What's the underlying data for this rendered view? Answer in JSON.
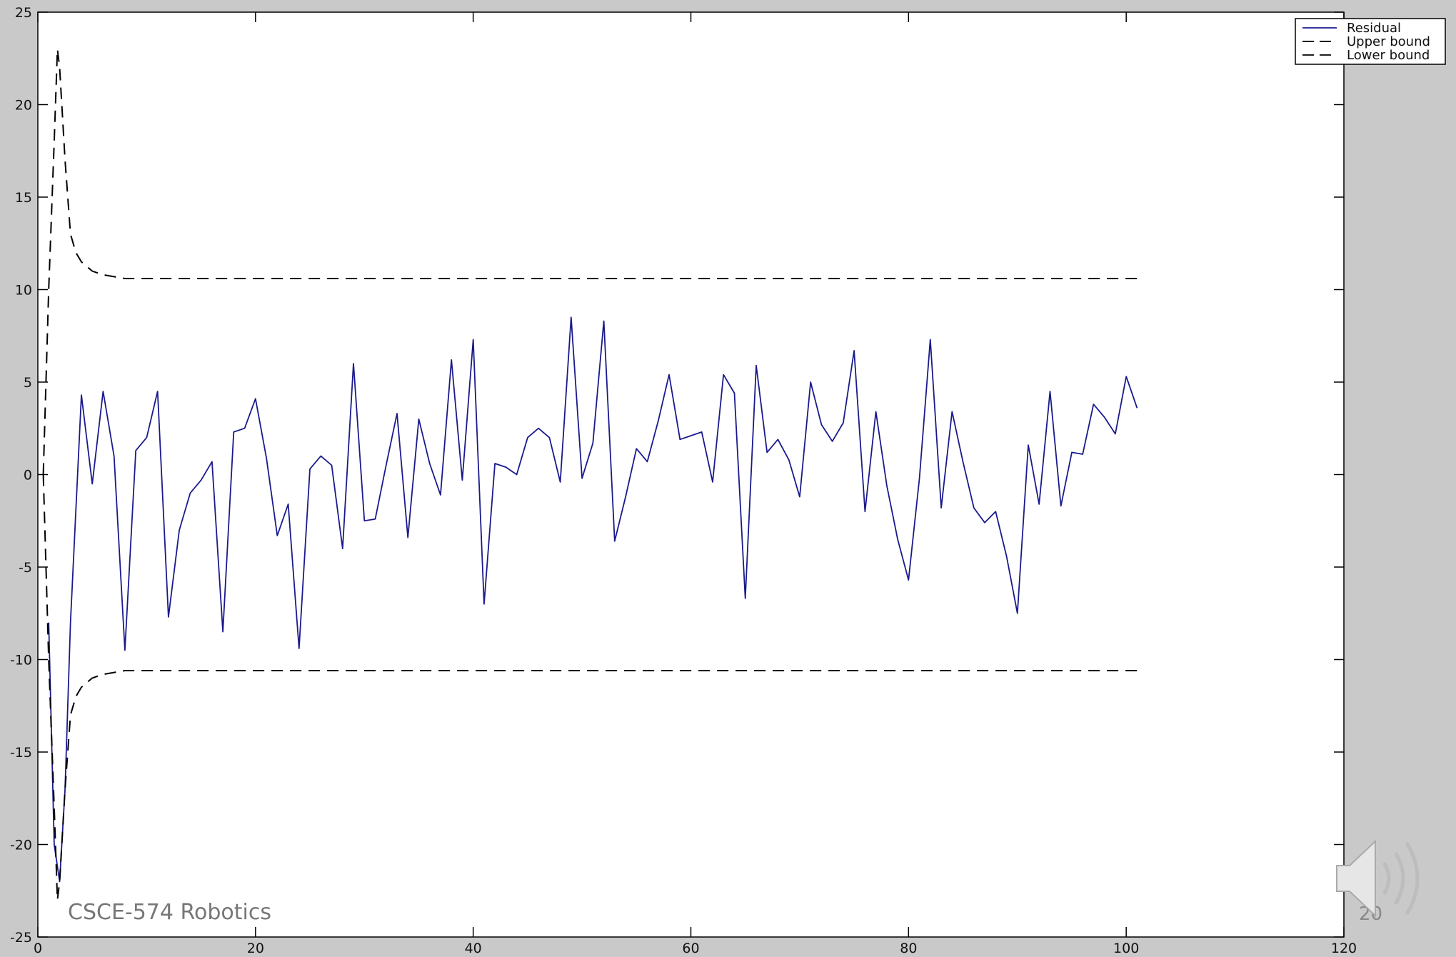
{
  "footer": {
    "course_label": "CSCE-574 Robotics",
    "slide_number": "20"
  },
  "icons": {
    "audio": "speaker-volume-icon"
  },
  "colors": {
    "residual": "#1a1a8c",
    "bounds": "#000000",
    "plot_background": "#ffffff",
    "frame_background": "#c9c9c9"
  },
  "chart_data": {
    "type": "line",
    "title": "",
    "xlabel": "",
    "ylabel": "",
    "xlim": [
      0,
      120
    ],
    "ylim": [
      -25,
      25
    ],
    "xticks": [
      0,
      20,
      40,
      60,
      80,
      100,
      120
    ],
    "yticks": [
      -25,
      -20,
      -15,
      -10,
      -5,
      0,
      5,
      10,
      15,
      20,
      25
    ],
    "grid": false,
    "legend_position": "top-right",
    "series": [
      {
        "name": "Residual",
        "style": "solid",
        "x": [
          1,
          1.5,
          2,
          2.5,
          3,
          4,
          5,
          6,
          7,
          8,
          9,
          10,
          11,
          12,
          13,
          14,
          15,
          16,
          17,
          18,
          19,
          20,
          21,
          22,
          23,
          24,
          25,
          26,
          27,
          28,
          29,
          30,
          31,
          32,
          33,
          34,
          35,
          36,
          37,
          38,
          39,
          40,
          41,
          42,
          43,
          44,
          45,
          46,
          47,
          48,
          49,
          50,
          51,
          52,
          53,
          54,
          55,
          56,
          57,
          58,
          59,
          60,
          61,
          62,
          63,
          64,
          65,
          66,
          67,
          68,
          69,
          70,
          71,
          72,
          73,
          74,
          75,
          76,
          77,
          78,
          79,
          80,
          81,
          82,
          83,
          84,
          85,
          86,
          87,
          88,
          89,
          90,
          91,
          92,
          93,
          94,
          95,
          96,
          97,
          98,
          99,
          100,
          101
        ],
        "y": [
          -8,
          -20,
          -22,
          -17,
          -8,
          4.3,
          -0.5,
          4.5,
          1,
          -9.5,
          1.3,
          2,
          4.5,
          -7.7,
          -3,
          -1,
          -0.3,
          0.7,
          -8.5,
          2.3,
          2.5,
          4.1,
          0.9,
          -3.3,
          -1.6,
          -9.4,
          0.3,
          1,
          0.5,
          -4,
          6,
          -2.5,
          -2.4,
          0.5,
          3.3,
          -3.4,
          3,
          0.6,
          -1.1,
          6.2,
          -0.3,
          7.3,
          -7,
          0.6,
          0.4,
          0,
          2,
          2.5,
          2,
          -0.4,
          8.5,
          -0.2,
          1.7,
          8.3,
          -3.6,
          -1.2,
          1.4,
          0.7,
          2.9,
          5.4,
          1.9,
          2.1,
          2.3,
          -0.4,
          5.4,
          4.4,
          -6.7,
          5.9,
          1.2,
          1.9,
          0.8,
          -1.2,
          5,
          2.7,
          1.8,
          2.8,
          6.7,
          -2,
          3.4,
          -0.6,
          -3.5,
          -5.7,
          -0.2,
          7.3,
          -1.8,
          3.4,
          0.7,
          -1.8,
          -2.6,
          -2,
          -4.4,
          -7.5,
          1.6,
          -1.6,
          4.5,
          -1.7,
          1.2,
          1.1,
          3.8,
          3.1,
          2.2,
          5.3,
          3.6
        ]
      },
      {
        "name": "Upper bound",
        "style": "dashed",
        "x": [
          0.5,
          1,
          1.5,
          1.8,
          2,
          2.5,
          3,
          3.5,
          4,
          5,
          6,
          7,
          8,
          10,
          20,
          101
        ],
        "y": [
          0,
          10,
          18,
          23,
          22,
          17,
          13,
          12,
          11.5,
          11,
          10.8,
          10.7,
          10.6,
          10.6,
          10.6,
          10.6
        ]
      },
      {
        "name": "Lower bound",
        "style": "dashed",
        "x": [
          0.5,
          1,
          1.5,
          1.8,
          2,
          2.5,
          3,
          3.5,
          4,
          5,
          6,
          7,
          8,
          10,
          20,
          101
        ],
        "y": [
          0,
          -10,
          -18,
          -23,
          -22,
          -17,
          -13,
          -12,
          -11.5,
          -11,
          -10.8,
          -10.7,
          -10.6,
          -10.6,
          -10.6,
          -10.6
        ]
      }
    ]
  }
}
